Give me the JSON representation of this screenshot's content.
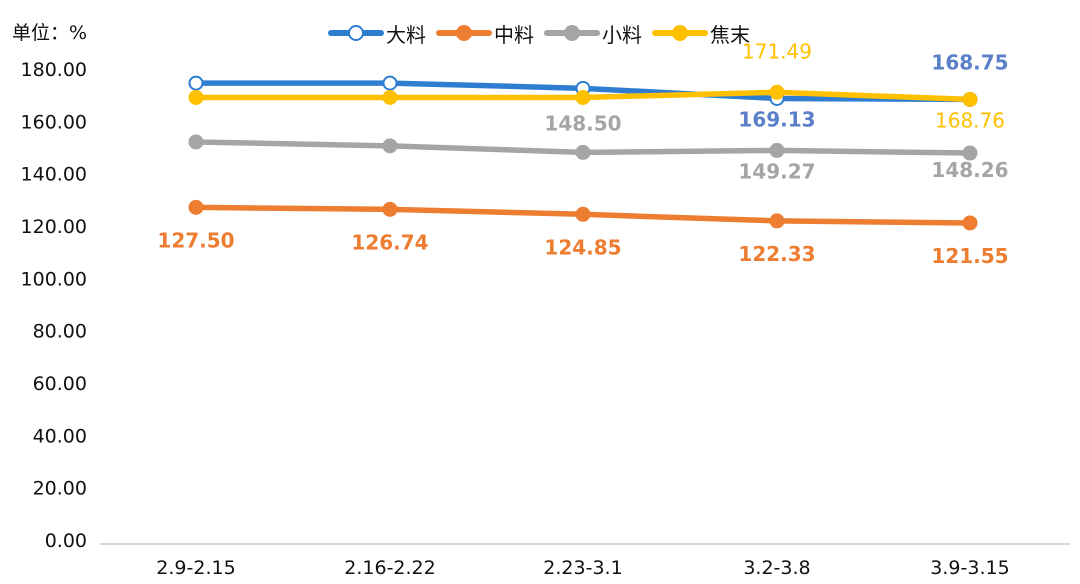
{
  "chart_data": {
    "type": "line",
    "unit_label": "单位：%",
    "categories": [
      "2.9-2.15",
      "2.16-2.22",
      "2.23-3.1",
      "3.2-3.8",
      "3.9-3.15"
    ],
    "ylim": [
      0,
      180
    ],
    "yticks": [
      "0.00",
      "20.00",
      "40.00",
      "60.00",
      "80.00",
      "100.00",
      "120.00",
      "140.00",
      "160.00",
      "180.00"
    ],
    "grid": false,
    "legend_position": "top",
    "series": [
      {
        "name": "大料",
        "color": "#2E7DD1",
        "label_color": "#5B7FC9",
        "marker": "hollow",
        "values": [
          175.0,
          175.0,
          173.0,
          169.13,
          168.75
        ],
        "labels": [
          "",
          "",
          "",
          "169.13",
          "168.75"
        ]
      },
      {
        "name": "中料",
        "color": "#ED7D31",
        "label_color": "#ED7D31",
        "marker": "filled",
        "values": [
          127.5,
          126.74,
          124.85,
          122.33,
          121.55
        ],
        "labels": [
          "127.50",
          "126.74",
          "124.85",
          "122.33",
          "121.55"
        ]
      },
      {
        "name": "小料",
        "color": "#A5A5A5",
        "label_color": "#A5A5A5",
        "marker": "filled",
        "values": [
          152.5,
          151.0,
          148.5,
          149.27,
          148.26
        ],
        "labels": [
          "",
          "",
          "148.50",
          "149.27",
          "148.26"
        ]
      },
      {
        "name": "焦末",
        "color": "#FFC000",
        "label_color": "#FFC000",
        "marker": "filled",
        "values": [
          169.5,
          169.5,
          169.5,
          171.49,
          168.76
        ],
        "labels": [
          "",
          "",
          "",
          "171.49",
          "168.76"
        ]
      }
    ]
  }
}
